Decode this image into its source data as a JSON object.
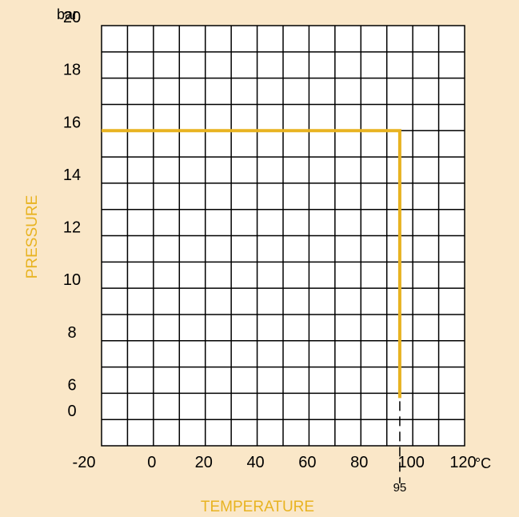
{
  "chart_data": {
    "type": "line",
    "title": "",
    "xlabel": "TEMPERATURE",
    "ylabel": "PRESSURE",
    "x_unit": "°C",
    "y_unit": "bar",
    "x_ticks": [
      "-20",
      "0",
      "20",
      "40",
      "60",
      "80",
      "100",
      "120"
    ],
    "y_ticks": [
      "20",
      "18",
      "16",
      "14",
      "12",
      "10",
      "8",
      "6",
      "0"
    ],
    "xlim": [
      -20,
      120
    ],
    "grid": true,
    "series": [
      {
        "color": "#e8b321",
        "points": [
          {
            "x": -20,
            "y": 16
          },
          {
            "x": 95,
            "y": 16
          },
          {
            "x": 95,
            "y": 4.9
          }
        ]
      }
    ],
    "annotations": [
      {
        "text": "95",
        "x": 95,
        "type": "dashed-vertical-marker"
      }
    ],
    "colors": {
      "background": "#fae7c8",
      "grid_fill": "#ffffff",
      "grid_line": "#000000",
      "series": "#e8b321",
      "axis_title": "#e8b321"
    }
  }
}
